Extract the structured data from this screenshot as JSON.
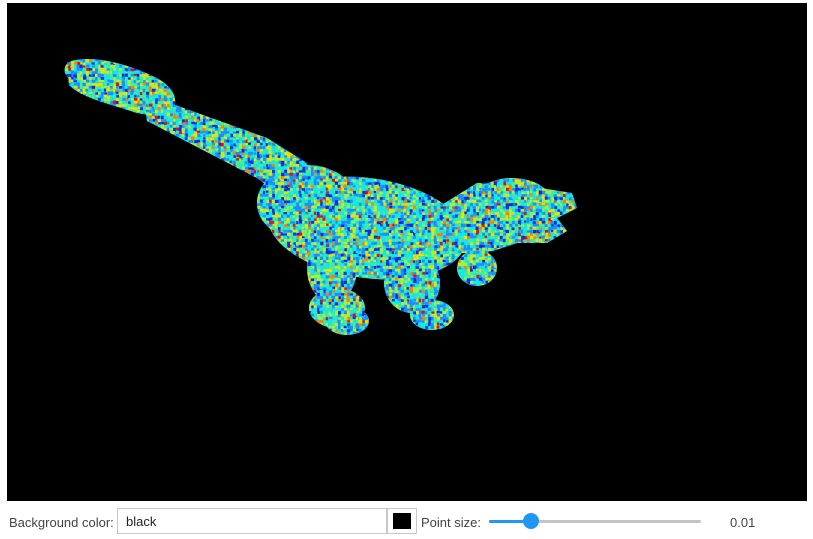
{
  "viewer": {
    "background": "#000000",
    "point_palette": [
      "#0a2be0",
      "#1e8cff",
      "#19e6e6",
      "#40f0a0",
      "#a8f040",
      "#f0e000",
      "#ff8000",
      "#e01010"
    ]
  },
  "controls": {
    "background_color_label": "Background color:",
    "background_color_value": "black",
    "swatch_color": "#000000",
    "point_size_label": "Point size:",
    "point_size_value": "0.01",
    "point_size_fraction": 0.2
  }
}
